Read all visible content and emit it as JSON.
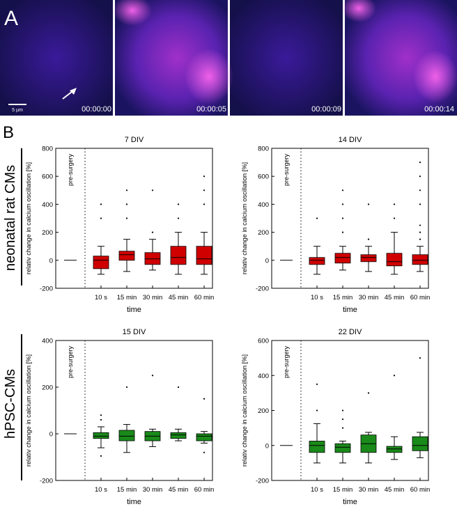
{
  "panel_a": {
    "label": "A",
    "timestamps": [
      "00:00:00",
      "00:00:05",
      "00:00:09",
      "00:00:14"
    ],
    "scale_bar": "5 µm"
  },
  "panel_b": {
    "label": "B",
    "row_labels": [
      "neonatal rat CMs",
      "hPSC-CMs"
    ]
  },
  "chart_data": [
    {
      "type": "box",
      "title": "7 DIV",
      "xlabel": "time",
      "ylabel": "relativ change in calcium oscillation [%]",
      "color": "#d00000",
      "baseline": {
        "label": "pre-surgery",
        "value": 0
      },
      "categories": [
        "10 s",
        "15 min",
        "30 min",
        "45 min",
        "60 min"
      ],
      "boxes": [
        {
          "min": -100,
          "q1": -60,
          "median": 0,
          "q3": 30,
          "max": 100,
          "outliers": [
            300,
            400
          ]
        },
        {
          "min": -80,
          "q1": 0,
          "median": 40,
          "q3": 65,
          "max": 150,
          "outliers": [
            300,
            400,
            500
          ]
        },
        {
          "min": -70,
          "q1": -30,
          "median": 10,
          "q3": 55,
          "max": 150,
          "outliers": [
            200,
            500
          ]
        },
        {
          "min": -100,
          "q1": -30,
          "median": 20,
          "q3": 100,
          "max": 200,
          "outliers": [
            300,
            400
          ]
        },
        {
          "min": -100,
          "q1": -30,
          "median": 10,
          "q3": 100,
          "max": 200,
          "outliers": [
            400,
            500,
            600
          ]
        }
      ],
      "ylim": [
        -200,
        800
      ],
      "yticks": [
        -200,
        0,
        200,
        400,
        600,
        800
      ]
    },
    {
      "type": "box",
      "title": "14 DIV",
      "xlabel": "time",
      "ylabel": "relativ change in calcium oscillation [%]",
      "color": "#d00000",
      "baseline": {
        "label": "pre-surgery",
        "value": 0
      },
      "categories": [
        "10 s",
        "15 min",
        "30 min",
        "45 min",
        "60 min"
      ],
      "boxes": [
        {
          "min": -100,
          "q1": -30,
          "median": 0,
          "q3": 20,
          "max": 100,
          "outliers": [
            300
          ]
        },
        {
          "min": -70,
          "q1": -20,
          "median": 20,
          "q3": 50,
          "max": 100,
          "outliers": [
            200,
            300,
            400,
            500
          ]
        },
        {
          "min": -80,
          "q1": -10,
          "median": 20,
          "q3": 40,
          "max": 100,
          "outliers": [
            150,
            400
          ]
        },
        {
          "min": -100,
          "q1": -40,
          "median": -10,
          "q3": 50,
          "max": 200,
          "outliers": [
            300,
            400
          ]
        },
        {
          "min": -80,
          "q1": -30,
          "median": 0,
          "q3": 40,
          "max": 100,
          "outliers": [
            150,
            200,
            250,
            400,
            500,
            600,
            700
          ]
        }
      ],
      "ylim": [
        -200,
        800
      ],
      "yticks": [
        -200,
        0,
        200,
        400,
        600,
        800
      ]
    },
    {
      "type": "box",
      "title": "15 DIV",
      "xlabel": "time",
      "ylabel": "relativ change in calcium oscillation [%]",
      "color": "#1a8a1a",
      "baseline": {
        "label": "pre-surgery",
        "value": 0
      },
      "categories": [
        "10 s",
        "15 min",
        "30 min",
        "45 min",
        "60 min"
      ],
      "boxes": [
        {
          "min": -60,
          "q1": -20,
          "median": -10,
          "q3": 5,
          "max": 30,
          "outliers": [
            -95,
            60,
            80
          ]
        },
        {
          "min": -80,
          "q1": -30,
          "median": -10,
          "q3": 15,
          "max": 40,
          "outliers": [
            200
          ]
        },
        {
          "min": -55,
          "q1": -30,
          "median": -10,
          "q3": 10,
          "max": 20,
          "outliers": [
            250
          ]
        },
        {
          "min": -30,
          "q1": -20,
          "median": -5,
          "q3": 5,
          "max": 20,
          "outliers": [
            200
          ]
        },
        {
          "min": -40,
          "q1": -30,
          "median": -10,
          "q3": 0,
          "max": 10,
          "outliers": [
            -80,
            150
          ]
        }
      ],
      "ylim": [
        -200,
        400
      ],
      "yticks": [
        -200,
        0,
        200,
        400
      ]
    },
    {
      "type": "box",
      "title": "22 DIV",
      "xlabel": "time",
      "ylabel": "relativ change in calcium oscillation [%]",
      "color": "#1a8a1a",
      "baseline": {
        "label": "pre-surgery",
        "value": 0
      },
      "categories": [
        "10 s",
        "15 min",
        "30 min",
        "45 min",
        "60 min"
      ],
      "boxes": [
        {
          "min": -100,
          "q1": -40,
          "median": 0,
          "q3": 25,
          "max": 125,
          "outliers": [
            200,
            350
          ]
        },
        {
          "min": -100,
          "q1": -40,
          "median": -10,
          "q3": 10,
          "max": 25,
          "outliers": [
            100,
            150,
            200
          ]
        },
        {
          "min": -100,
          "q1": -40,
          "median": 10,
          "q3": 60,
          "max": 75,
          "outliers": [
            300
          ]
        },
        {
          "min": -80,
          "q1": -40,
          "median": -20,
          "q3": -5,
          "max": 50,
          "outliers": [
            400
          ]
        },
        {
          "min": -70,
          "q1": -30,
          "median": 0,
          "q3": 50,
          "max": 75,
          "outliers": [
            500
          ]
        }
      ],
      "ylim": [
        -200,
        600
      ],
      "yticks": [
        -200,
        0,
        200,
        400,
        600
      ]
    }
  ]
}
